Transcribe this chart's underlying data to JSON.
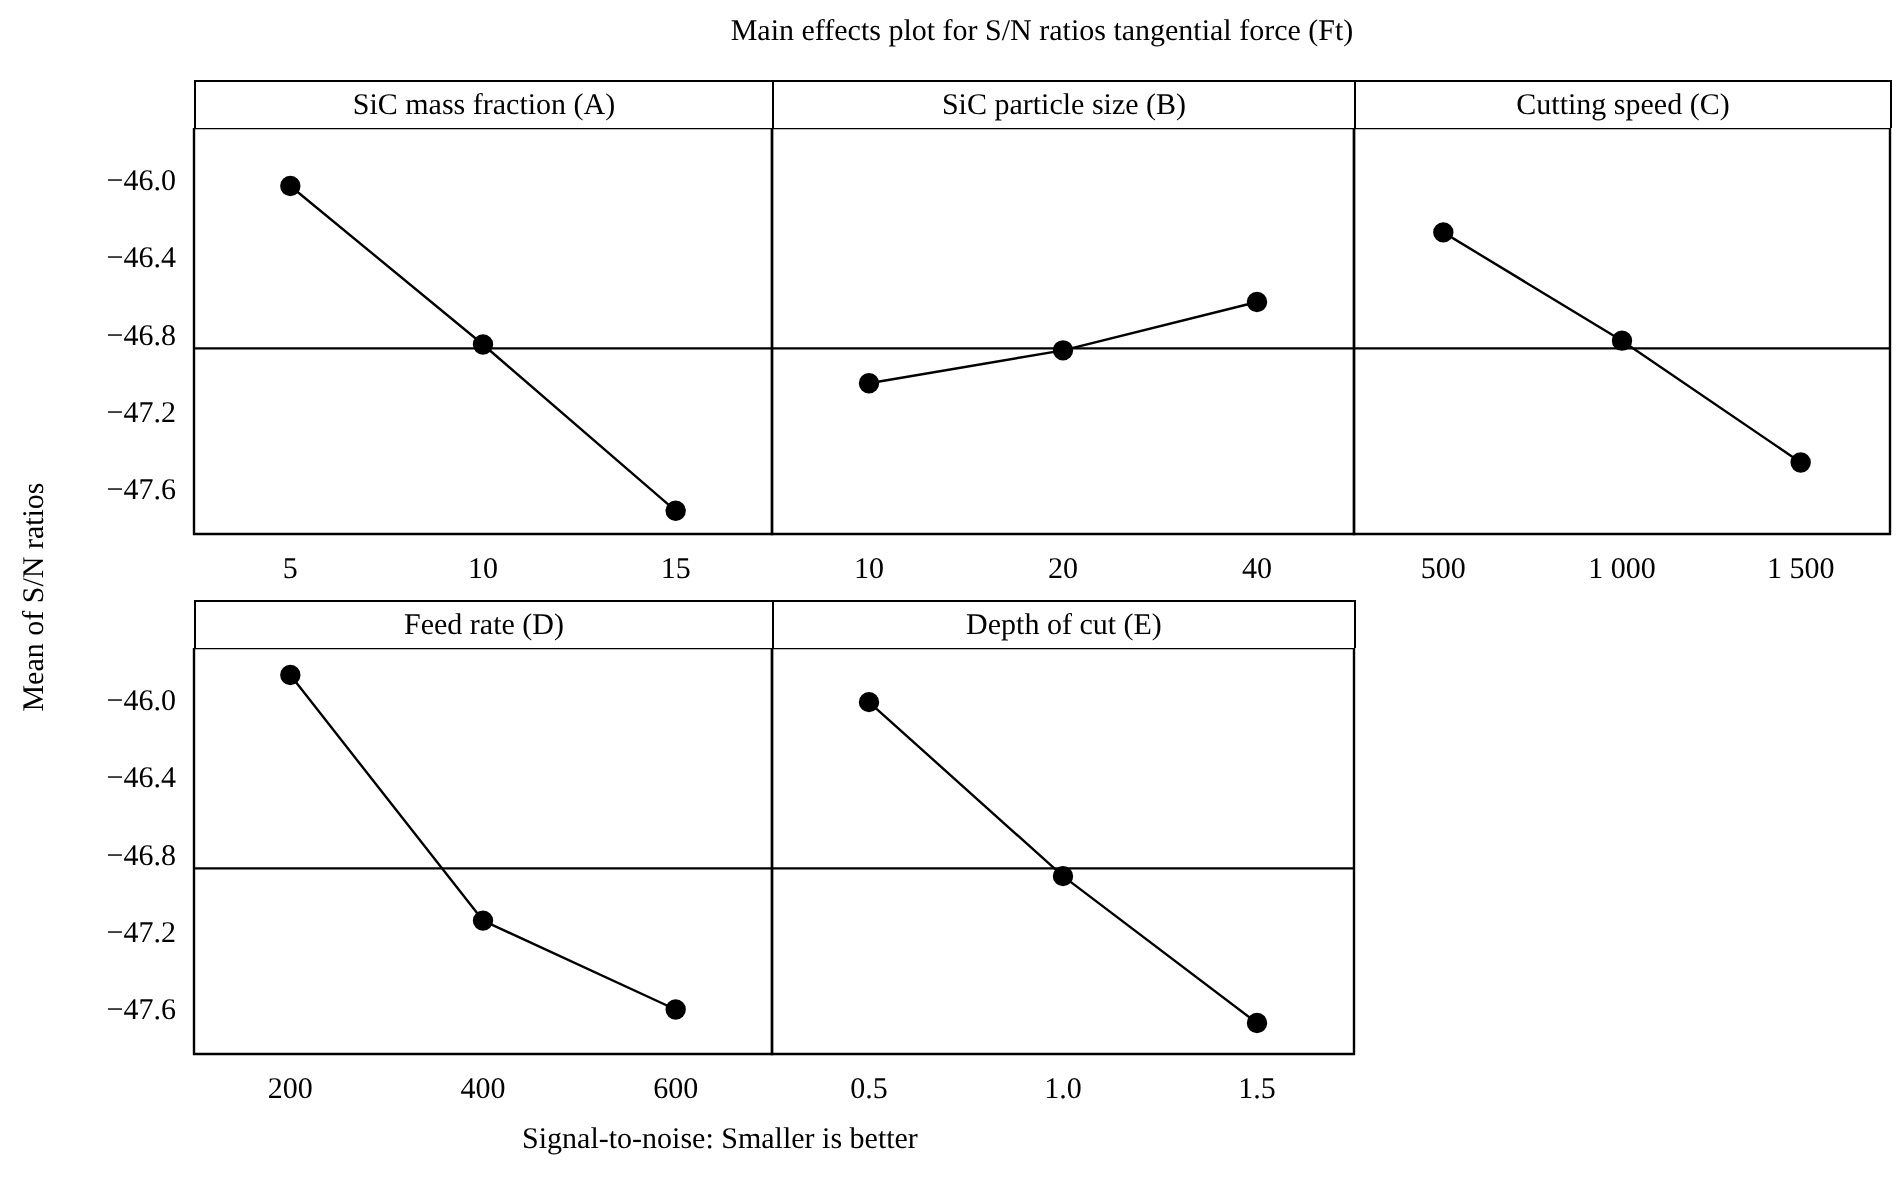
{
  "chart_data": [
    {
      "type": "line",
      "title": "SiC mass fraction (A)",
      "annotations": [
        "Main effects plot for S/N ratios tangential force (Ft)"
      ],
      "ylabel": "Mean of S/N ratios",
      "categories": [
        "5",
        "10",
        "15"
      ],
      "series": [
        {
          "color": "#000000",
          "values": [
            -46.02,
            -46.84,
            -47.7
          ]
        }
      ],
      "ylim": [
        -47.82,
        -45.72
      ],
      "yticks": [
        {
          "value": -46,
          "label": "−46.0"
        },
        {
          "value": -46.4,
          "label": "−46.4"
        },
        {
          "value": -46.8,
          "label": "−46.8"
        },
        {
          "value": -47.2,
          "label": "−47.2"
        },
        {
          "value": -47.6,
          "label": "−47.6"
        }
      ],
      "ref_lines": [
        {
          "axis": "y",
          "value": -46.86,
          "color": "#000000"
        }
      ],
      "marker": "circle"
    },
    {
      "type": "line",
      "title": "SiC particle size (B)",
      "categories": [
        "10",
        "20",
        "40"
      ],
      "series": [
        {
          "color": "#000000",
          "values": [
            -47.04,
            -46.87,
            -46.62
          ]
        }
      ],
      "ylim": [
        -47.82,
        -45.72
      ],
      "tick_labels": "x",
      "ref_lines": [
        {
          "axis": "y",
          "value": -46.86,
          "color": "#000000"
        }
      ],
      "marker": "circle"
    },
    {
      "type": "line",
      "title": "Cutting speed (C)",
      "categories": [
        "500",
        "1 000",
        "1 500"
      ],
      "series": [
        {
          "color": "#000000",
          "values": [
            -46.26,
            -46.82,
            -47.45
          ]
        }
      ],
      "ylim": [
        -47.82,
        -45.72
      ],
      "tick_labels": "x",
      "ref_lines": [
        {
          "axis": "y",
          "value": -46.86,
          "color": "#000000"
        }
      ],
      "marker": "circle"
    },
    {
      "type": "line",
      "title": "Feed rate (D)",
      "xlabel": "Signal-to-noise: Smaller is better",
      "categories": [
        "200",
        "400",
        "600"
      ],
      "series": [
        {
          "color": "#000000",
          "values": [
            -45.86,
            -47.13,
            -47.59
          ]
        }
      ],
      "ylim": [
        -47.82,
        -45.72
      ],
      "yticks": [
        {
          "value": -46,
          "label": "−46.0"
        },
        {
          "value": -46.4,
          "label": "−46.4"
        },
        {
          "value": -46.8,
          "label": "−46.8"
        },
        {
          "value": -47.2,
          "label": "−47.2"
        },
        {
          "value": -47.6,
          "label": "−47.6"
        }
      ],
      "ref_lines": [
        {
          "axis": "y",
          "value": -46.86,
          "color": "#000000"
        }
      ],
      "marker": "circle"
    },
    {
      "type": "line",
      "title": "Depth of cut (E)",
      "categories": [
        "0.5",
        "1.0",
        "1.5"
      ],
      "series": [
        {
          "color": "#000000",
          "values": [
            -46.0,
            -46.9,
            -47.66
          ]
        }
      ],
      "ylim": [
        -47.82,
        -45.72
      ],
      "tick_labels": "x",
      "ref_lines": [
        {
          "axis": "y",
          "value": -46.86,
          "color": "#000000"
        }
      ],
      "marker": "circle"
    }
  ]
}
